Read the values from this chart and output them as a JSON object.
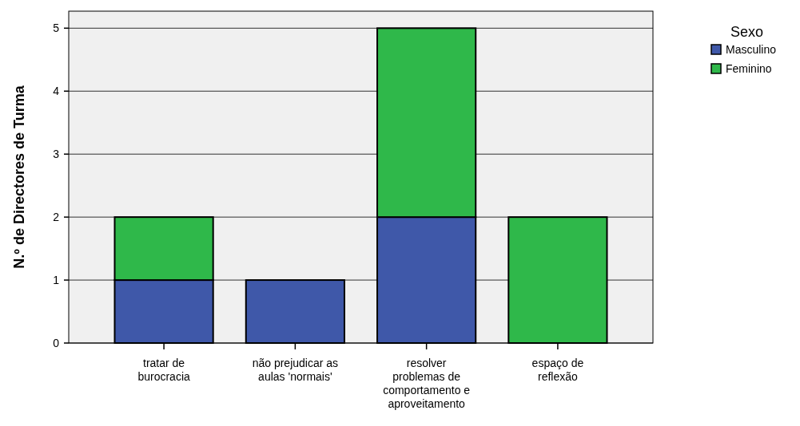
{
  "chart_data": {
    "type": "bar",
    "ylabel": "N.º de Directores de Turma",
    "legend_title": "Sexo",
    "categories": [
      "tratar de burocracia",
      "não prejudicar as aulas 'normais'",
      "resolver problemas de comportamento e aproveitamento",
      "espaço de reflexão"
    ],
    "series": [
      {
        "name": "Masculino",
        "color": "#3f58a9",
        "values": [
          1,
          1,
          2,
          0
        ]
      },
      {
        "name": "Feminino",
        "color": "#2fb84a",
        "values": [
          1,
          0,
          3,
          2
        ]
      }
    ],
    "stacked": true,
    "ylim": [
      0,
      5.27
    ],
    "yticks": [
      0,
      1,
      2,
      3,
      4,
      5
    ],
    "grid": "y",
    "legend": "right"
  }
}
